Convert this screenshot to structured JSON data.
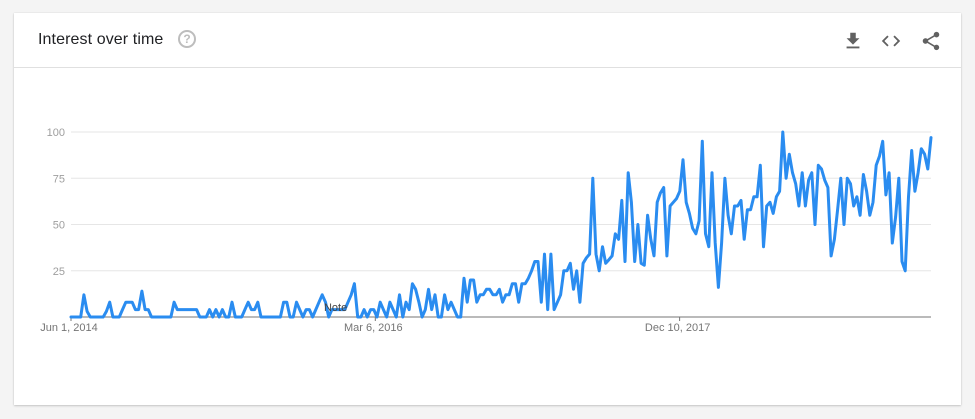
{
  "header": {
    "title": "Interest over time",
    "help_glyph": "?",
    "icons": [
      "download-icon",
      "embed-code-icon",
      "share-icon"
    ]
  },
  "colors": {
    "line": "#2a8cf0",
    "grid": "#e6e6e6",
    "axis": "#757575"
  },
  "note_label": "Note",
  "chart_data": {
    "type": "line",
    "title": "Interest over time",
    "xlabel": "",
    "ylabel": "",
    "ylim": [
      0,
      100
    ],
    "yticks": [
      25,
      50,
      75,
      100
    ],
    "grid": true,
    "x_range": [
      "2014-06-01",
      "2019-05-26"
    ],
    "xtick_labels": [
      {
        "label": "Jun 1, 2014",
        "date": "2014-06-01"
      },
      {
        "label": "Mar 6, 2016",
        "date": "2016-03-06"
      },
      {
        "label": "Dec 10, 2017",
        "date": "2017-12-10"
      }
    ],
    "annotations": [
      {
        "text": "Note",
        "date": "2015-12-13"
      }
    ],
    "series": [
      {
        "values": [
          0,
          0,
          0,
          0,
          12,
          3,
          0,
          0,
          0,
          0,
          0,
          3,
          8,
          0,
          0,
          0,
          4,
          8,
          8,
          8,
          4,
          4,
          14,
          4,
          4,
          0,
          0,
          0,
          0,
          0,
          0,
          0,
          8,
          4,
          4,
          4,
          4,
          4,
          4,
          4,
          0,
          0,
          0,
          4,
          0,
          4,
          0,
          4,
          0,
          0,
          8,
          0,
          0,
          0,
          4,
          8,
          4,
          4,
          8,
          0,
          0,
          0,
          0,
          0,
          0,
          0,
          8,
          8,
          0,
          0,
          8,
          4,
          0,
          4,
          4,
          0,
          4,
          8,
          12,
          8,
          0,
          4,
          4,
          4,
          4,
          4,
          8,
          12,
          18,
          0,
          0,
          4,
          0,
          4,
          4,
          0,
          8,
          4,
          0,
          8,
          4,
          0,
          12,
          0,
          8,
          4,
          18,
          15,
          8,
          0,
          4,
          15,
          4,
          12,
          0,
          0,
          12,
          4,
          8,
          4,
          0,
          0,
          21,
          8,
          20,
          20,
          8,
          12,
          12,
          15,
          15,
          12,
          12,
          15,
          8,
          12,
          12,
          18,
          18,
          8,
          18,
          18,
          21,
          25,
          30,
          30,
          8,
          34,
          4,
          34,
          4,
          8,
          12,
          25,
          25,
          29,
          15,
          25,
          8,
          29,
          32,
          34,
          75,
          34,
          25,
          38,
          29,
          31,
          33,
          45,
          42,
          63,
          30,
          78,
          62,
          30,
          50,
          29,
          28,
          55,
          42,
          33,
          62,
          67,
          70,
          33,
          60,
          62,
          64,
          68,
          85,
          62,
          56,
          48,
          45,
          52,
          95,
          45,
          38,
          78,
          40,
          16,
          40,
          75,
          55,
          45,
          60,
          60,
          63,
          42,
          58,
          58,
          65,
          65,
          82,
          38,
          60,
          62,
          56,
          65,
          68,
          100,
          75,
          88,
          78,
          72,
          60,
          78,
          60,
          74,
          78,
          50,
          82,
          80,
          74,
          70,
          33,
          42,
          58,
          75,
          50,
          75,
          72,
          60,
          65,
          55,
          77,
          68,
          55,
          62,
          82,
          87,
          95,
          66,
          78,
          40,
          54,
          75,
          30,
          25,
          65,
          90,
          68,
          78,
          91,
          88,
          80,
          97
        ]
      }
    ]
  }
}
